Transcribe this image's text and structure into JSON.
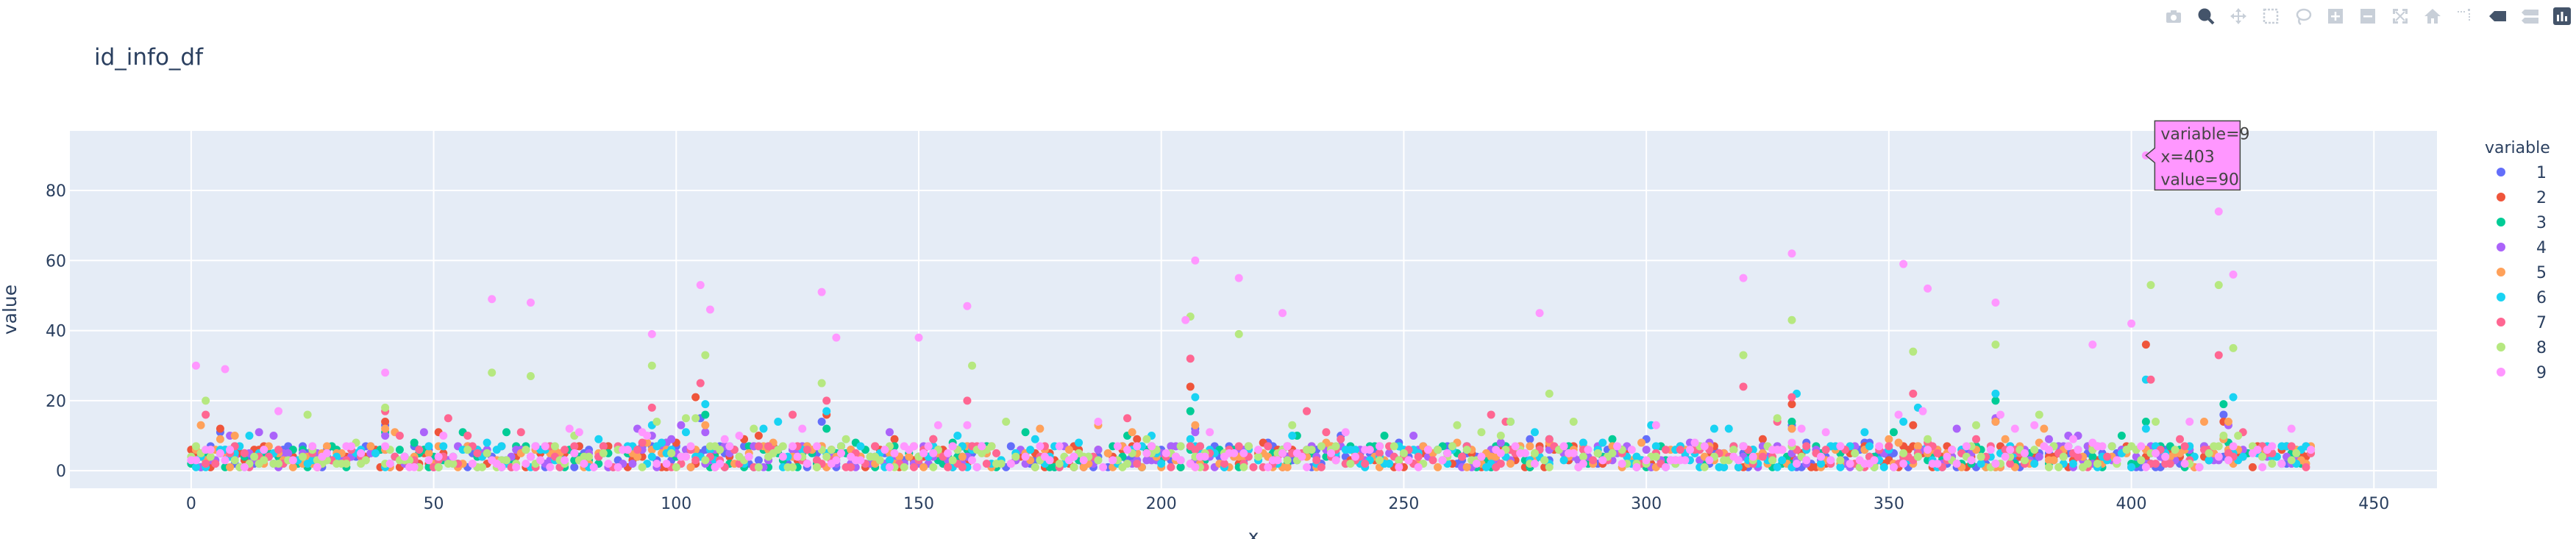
{
  "modebar": {
    "buttons": [
      {
        "name": "camera-icon"
      },
      {
        "name": "zoom-icon",
        "active": true
      },
      {
        "name": "pan-icon"
      },
      {
        "name": "box-select-icon"
      },
      {
        "name": "lasso-select-icon"
      },
      {
        "name": "zoom-in-icon"
      },
      {
        "name": "zoom-out-icon"
      },
      {
        "name": "autoscale-icon"
      },
      {
        "name": "reset-axes-icon"
      },
      {
        "name": "spike-lines-icon"
      },
      {
        "name": "hover-closest-icon"
      },
      {
        "name": "hover-compare-icon"
      },
      {
        "name": "plotly-logo-icon"
      }
    ]
  },
  "chart_data": {
    "type": "scatter",
    "title": "id_info_df",
    "xlabel": "x",
    "ylabel": "value",
    "xlim": [
      -25,
      463
    ],
    "ylim": [
      -5,
      97
    ],
    "xticks": [
      0,
      50,
      100,
      150,
      200,
      250,
      300,
      350,
      400,
      450
    ],
    "yticks": [
      0,
      20,
      40,
      60,
      80
    ],
    "grid": true,
    "legend": {
      "title": "variable",
      "placement": "right"
    },
    "series": [
      {
        "name": "1",
        "color": "#636efa",
        "peaks": [
          [
            6,
            11
          ],
          [
            40,
            13
          ],
          [
            105,
            15
          ],
          [
            130,
            14
          ],
          [
            207,
            12
          ],
          [
            330,
            13
          ],
          [
            372,
            14
          ],
          [
            419,
            16
          ]
        ]
      },
      {
        "name": "2",
        "color": "#EF553B",
        "peaks": [
          [
            6,
            12
          ],
          [
            40,
            14
          ],
          [
            104,
            21
          ],
          [
            131,
            16
          ],
          [
            206,
            24
          ],
          [
            330,
            19
          ],
          [
            355,
            13
          ],
          [
            403,
            36
          ],
          [
            419,
            14
          ]
        ]
      },
      {
        "name": "3",
        "color": "#00cc96",
        "peaks": [
          [
            40,
            11
          ],
          [
            106,
            16
          ],
          [
            131,
            12
          ],
          [
            206,
            17
          ],
          [
            330,
            14
          ],
          [
            372,
            20
          ],
          [
            403,
            14
          ],
          [
            419,
            19
          ]
        ]
      },
      {
        "name": "4",
        "color": "#ab63fa",
        "peaks": [
          [
            40,
            10
          ],
          [
            106,
            11
          ],
          [
            207,
            11
          ],
          [
            330,
            12
          ],
          [
            372,
            15
          ],
          [
            420,
            13
          ]
        ]
      },
      {
        "name": "5",
        "color": "#FFA15A",
        "peaks": [
          [
            40,
            12
          ],
          [
            106,
            13
          ],
          [
            207,
            13
          ],
          [
            330,
            12
          ],
          [
            372,
            14
          ],
          [
            420,
            14
          ]
        ]
      },
      {
        "name": "6",
        "color": "#19d3f3",
        "peaks": [
          [
            95,
            13
          ],
          [
            106,
            19
          ],
          [
            131,
            17
          ],
          [
            207,
            21
          ],
          [
            331,
            22
          ],
          [
            356,
            18
          ],
          [
            372,
            22
          ],
          [
            403,
            26
          ],
          [
            421,
            21
          ]
        ]
      },
      {
        "name": "7",
        "color": "#FF6692",
        "peaks": [
          [
            3,
            16
          ],
          [
            40,
            17
          ],
          [
            95,
            18
          ],
          [
            105,
            25
          ],
          [
            131,
            20
          ],
          [
            160,
            20
          ],
          [
            206,
            32
          ],
          [
            230,
            17
          ],
          [
            320,
            24
          ],
          [
            330,
            21
          ],
          [
            355,
            22
          ],
          [
            404,
            26
          ],
          [
            418,
            33
          ]
        ]
      },
      {
        "name": "8",
        "color": "#B6E880",
        "peaks": [
          [
            3,
            20
          ],
          [
            40,
            18
          ],
          [
            62,
            28
          ],
          [
            70,
            27
          ],
          [
            95,
            30
          ],
          [
            106,
            33
          ],
          [
            130,
            25
          ],
          [
            161,
            30
          ],
          [
            206,
            44
          ],
          [
            216,
            39
          ],
          [
            280,
            22
          ],
          [
            320,
            33
          ],
          [
            330,
            43
          ],
          [
            355,
            34
          ],
          [
            372,
            36
          ],
          [
            404,
            53
          ],
          [
            418,
            53
          ],
          [
            421,
            35
          ]
        ]
      },
      {
        "name": "9",
        "color": "#FF97FF",
        "peaks": [
          [
            1,
            30
          ],
          [
            7,
            29
          ],
          [
            40,
            28
          ],
          [
            62,
            49
          ],
          [
            70,
            48
          ],
          [
            95,
            39
          ],
          [
            105,
            53
          ],
          [
            107,
            46
          ],
          [
            130,
            51
          ],
          [
            133,
            38
          ],
          [
            150,
            38
          ],
          [
            160,
            47
          ],
          [
            205,
            43
          ],
          [
            207,
            60
          ],
          [
            216,
            55
          ],
          [
            225,
            45
          ],
          [
            278,
            45
          ],
          [
            320,
            55
          ],
          [
            330,
            62
          ],
          [
            353,
            59
          ],
          [
            358,
            52
          ],
          [
            372,
            48
          ],
          [
            392,
            36
          ],
          [
            400,
            42
          ],
          [
            403,
            90
          ],
          [
            418,
            74
          ],
          [
            421,
            56
          ]
        ]
      }
    ],
    "tooltip": {
      "variable": "9",
      "x": 403,
      "value": 90,
      "lines": [
        "variable=9",
        "x=403",
        "value=90"
      ]
    }
  }
}
